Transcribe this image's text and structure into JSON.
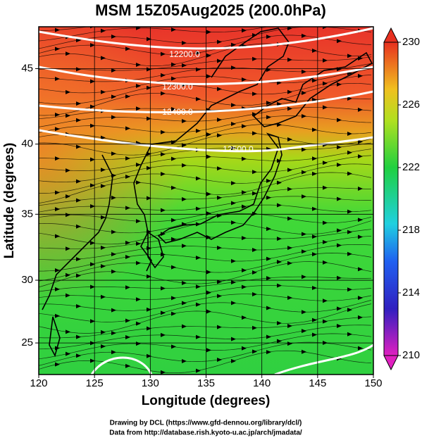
{
  "chart_data": {
    "type": "map",
    "title": "MSM 15Z05Aug2025 (200.0hPa)",
    "x_label": "Longitude (degrees)",
    "y_label": "Latitude  (degrees)",
    "xlim": [
      120,
      150
    ],
    "xticks": [
      120,
      125,
      130,
      135,
      140,
      145,
      150
    ],
    "ylim": [
      22.4,
      47.6
    ],
    "yticks": [
      25,
      30,
      35,
      40,
      45
    ],
    "y_scale": "mercator",
    "grid": true,
    "clim": [
      210,
      230
    ],
    "cticks": [
      210,
      214,
      218,
      222,
      226,
      230
    ],
    "contour_labels": [
      "12200.0",
      "12300.0",
      "12400.0",
      "12500.0"
    ],
    "footer": [
      "Drawing by DCL (https://www.gfd-dennou.org/library/dcl/)",
      "Data from http://database.rish.kyoto-u.ac.jp/arch/jmadata/"
    ]
  }
}
